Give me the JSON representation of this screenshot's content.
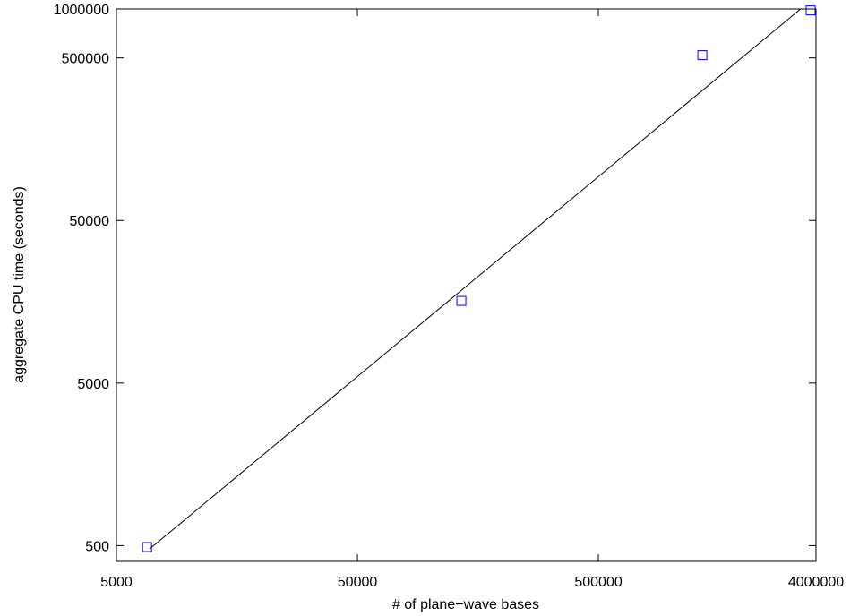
{
  "chart_data": {
    "type": "scatter",
    "title": "",
    "xlabel": "# of plane−wave bases",
    "ylabel": "aggregate CPU time (seconds)",
    "x_scale": "log",
    "y_scale": "log",
    "xlim": [
      5000,
      4000000
    ],
    "ylim": [
      400,
      1000000
    ],
    "x_ticks": [
      5000,
      50000,
      500000,
      4000000
    ],
    "x_tick_labels": [
      "5000",
      "50000",
      "500000",
      "4000000"
    ],
    "y_ticks": [
      500,
      5000,
      50000,
      500000,
      1000000
    ],
    "y_tick_labels": [
      "500",
      "5000",
      "50000",
      "500000",
      "1000000"
    ],
    "grid": false,
    "series": [
      {
        "type": "scatter",
        "marker": "square",
        "color": "#0000ff",
        "x": [
          6700,
          135000,
          1350000,
          3800000
        ],
        "y": [
          490,
          16000,
          520000,
          980000
        ]
      },
      {
        "type": "line",
        "color": "#000000",
        "x": [
          6900,
          3450000
        ],
        "y": [
          480,
          1000000
        ]
      }
    ]
  }
}
